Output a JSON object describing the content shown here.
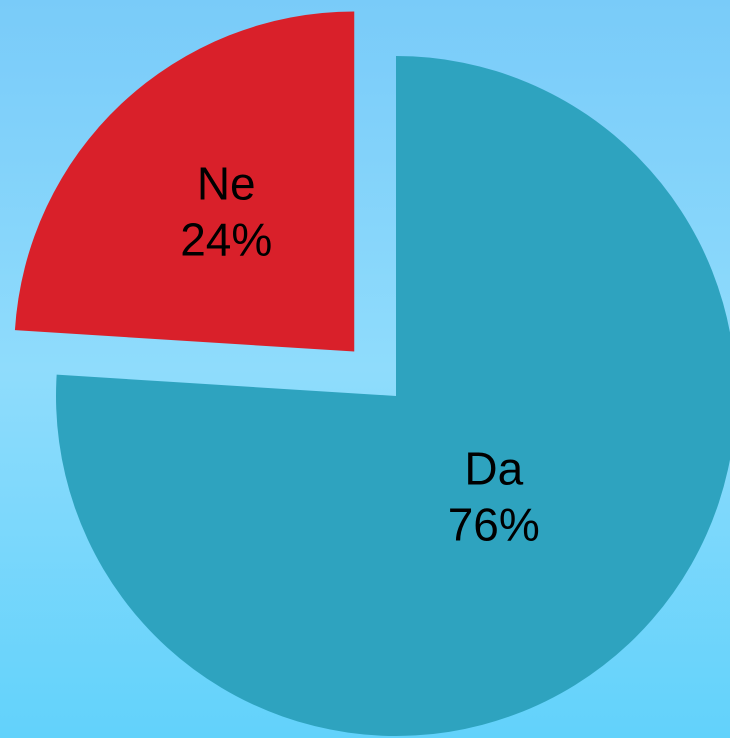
{
  "chart_data": {
    "type": "pie",
    "categories": [
      "Da",
      "Ne"
    ],
    "values": [
      76,
      24
    ],
    "value_labels": [
      "76%",
      "24%"
    ],
    "colors": [
      "#2ea3bf",
      "#d9202a"
    ],
    "explode": [
      false,
      true
    ]
  }
}
